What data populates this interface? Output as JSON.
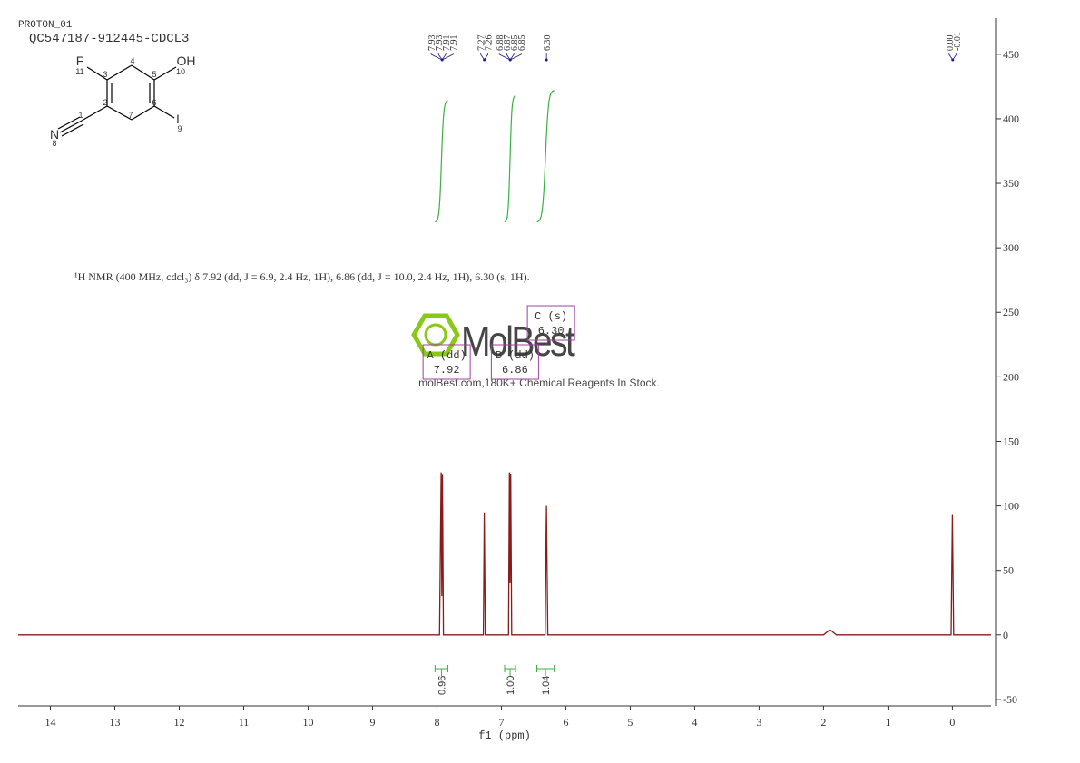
{
  "header": {
    "experiment": "PROTON_01",
    "sample": "QC547187-912445-CDCL3"
  },
  "molecule": {
    "atoms": [
      "F",
      "OH",
      "N",
      "I"
    ],
    "numbers": [
      "11",
      "3",
      "4",
      "5",
      "10",
      "2",
      "6",
      "7",
      "1",
      "8",
      "9"
    ]
  },
  "description": "¹H NMR (400 MHz, cdcl₃) δ 7.92 (dd, J = 6.9, 2.4 Hz, 1H), 6.86 (dd, J = 10.0, 2.4 Hz, 1H), 6.30 (s, 1H).",
  "watermark": {
    "brand": "MolBest",
    "tagline": "molBest.com,180K+ Chemical Reagents In Stock."
  },
  "chart_data": {
    "type": "line",
    "x_label": "f1 (ppm)",
    "color": "#8b1a1a",
    "x": [
      14.5,
      9.0,
      7.96,
      7.935,
      7.925,
      7.915,
      7.9,
      7.28,
      7.265,
      7.25,
      6.89,
      6.875,
      6.865,
      6.855,
      6.84,
      6.32,
      6.3,
      6.28,
      2.0,
      1.9,
      1.8,
      0.02,
      0.0,
      -0.02,
      -0.6
    ],
    "values": [
      0,
      0,
      0,
      126,
      30,
      124,
      0,
      0,
      95,
      0,
      0,
      126,
      40,
      125,
      0,
      0,
      100,
      0,
      0,
      4,
      0,
      0,
      93,
      0,
      0
    ],
    "xlim": [
      14.5,
      -0.6
    ],
    "xticks": [
      14,
      13,
      12,
      11,
      10,
      9,
      8,
      7,
      6,
      5,
      4,
      3,
      2,
      1,
      0
    ],
    "ylim": [
      -55,
      478
    ],
    "yticks": [
      -50,
      0,
      50,
      100,
      150,
      200,
      250,
      300,
      350,
      400,
      450
    ],
    "peak_labels": [
      7.93,
      7.93,
      7.91,
      7.91,
      7.27,
      7.26,
      6.88,
      6.87,
      6.85,
      6.85,
      {
        "value": 6.3,
        "label": "6.30"
      },
      {
        "value": 0,
        "label": "0.00"
      },
      -0.01
    ],
    "integral_ranges": [
      [
        8.03,
        7.83
      ],
      [
        6.95,
        6.78
      ],
      [
        6.45,
        6.18
      ]
    ],
    "integral_values": [
      0.96,
      {
        "value": 1,
        "label": "1.00"
      },
      1.04
    ],
    "integral_color": "#3cb043",
    "multiplets": [
      {
        "label": "A (dd)",
        "shift": 7.92
      },
      {
        "label": "B (dd)",
        "shift": 6.86
      },
      {
        "label": "C (s)",
        "shift": {
          "value": 6.3,
          "label": "6.30"
        }
      }
    ]
  }
}
